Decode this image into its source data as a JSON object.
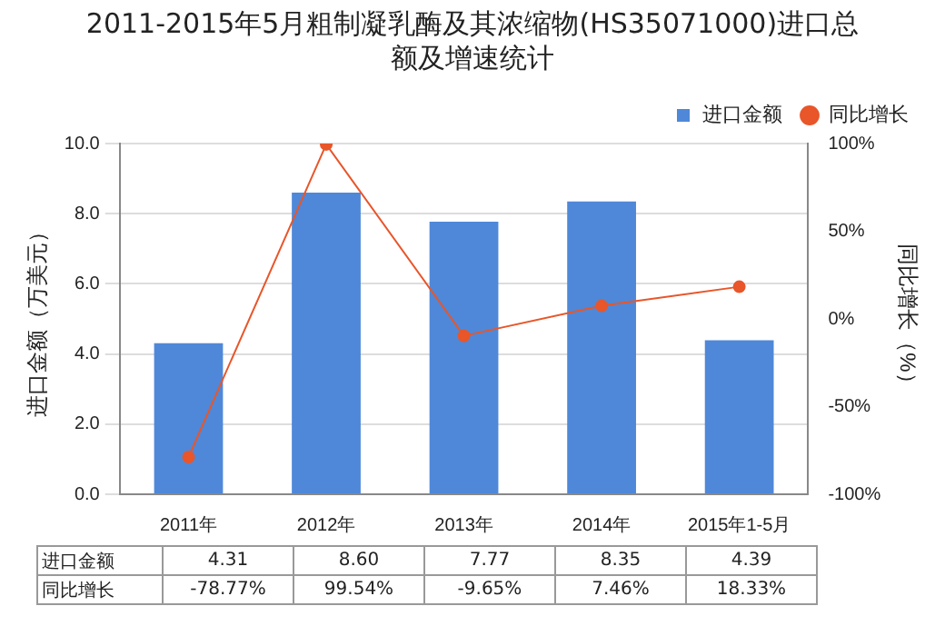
{
  "chart_data": {
    "type": "bar",
    "title": "2011-2015年5月粗制凝乳酶及其浓缩物(HS35071000)进口总额及增速统计",
    "ylabel": "进口金额（万美元）",
    "y2label": "同比增长（%）",
    "categories": [
      "2011年",
      "2012年",
      "2013年",
      "2014年",
      "2015年1-5月"
    ],
    "series": [
      {
        "name": "进口金额",
        "color": "#4f88d8",
        "values": [
          4.31,
          8.6,
          7.77,
          8.35,
          4.39
        ],
        "value_labels": [
          "4.31",
          "8.60",
          "7.77",
          "8.35",
          "4.39"
        ]
      },
      {
        "name": "同比增长",
        "type": "line",
        "axis": "y2",
        "color": "#e8562a",
        "marker": "circle",
        "line_style": "solid",
        "values": [
          -78.77,
          99.54,
          -9.65,
          7.46,
          18.33
        ],
        "value_labels": [
          "-78.77%",
          "99.54%",
          "-9.65%",
          "7.46%",
          "18.33%"
        ]
      }
    ],
    "ylim": [
      0,
      10
    ],
    "yticks": [
      {
        "value": 0,
        "label": "0.0"
      },
      {
        "value": 2,
        "label": "2.0"
      },
      {
        "value": 4,
        "label": "4.0"
      },
      {
        "value": 6,
        "label": "6.0"
      },
      {
        "value": 8,
        "label": "8.0"
      },
      {
        "value": 10,
        "label": "10.0"
      }
    ],
    "y2lim": [
      -100,
      100
    ],
    "y2ticks": [
      {
        "value": -100,
        "label": "-100%"
      },
      {
        "value": -50,
        "label": "-50%"
      },
      {
        "value": 0,
        "label": "0%"
      },
      {
        "value": 50,
        "label": "50%"
      },
      {
        "value": 100,
        "label": "100%"
      }
    ],
    "grid": "y",
    "legend": "top right"
  }
}
